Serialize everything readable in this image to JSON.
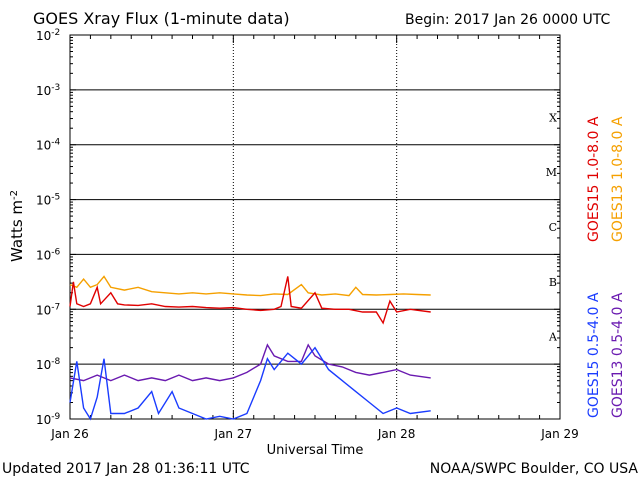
{
  "header": {
    "title": "GOES Xray Flux (1-minute data)",
    "begin": "Begin:  2017 Jan 26 0000 UTC"
  },
  "footer": {
    "updated": "Updated 2017 Jan 28 01:36:11 UTC",
    "credit": "NOAA/SWPC Boulder, CO USA"
  },
  "colors": {
    "goes15_long": "#e00000",
    "goes13_long": "#f5a000",
    "goes15_short": "#1a3cff",
    "goes13_short": "#6a1ab0"
  },
  "chart_data": {
    "type": "line",
    "title": "GOES Xray Flux (1-minute data)",
    "xlabel": "Universal Time",
    "ylabel": "Watts m-2",
    "yscale": "log",
    "ylim": [
      1e-09,
      0.01
    ],
    "xlim_hours": [
      0,
      72
    ],
    "x_ticks": [
      {
        "h": 0,
        "label": "Jan 26"
      },
      {
        "h": 24,
        "label": "Jan 27"
      },
      {
        "h": 48,
        "label": "Jan 28"
      },
      {
        "h": 72,
        "label": "Jan 29"
      }
    ],
    "y_ticks": [
      {
        "exp": -2,
        "label": "10"
      },
      {
        "exp": -3,
        "label": "10"
      },
      {
        "exp": -4,
        "label": "10"
      },
      {
        "exp": -5,
        "label": "10"
      },
      {
        "exp": -6,
        "label": "10"
      },
      {
        "exp": -7,
        "label": "10"
      },
      {
        "exp": -8,
        "label": "10"
      },
      {
        "exp": -9,
        "label": "10"
      }
    ],
    "flare_classes": [
      {
        "label": "X",
        "exp": -3.5
      },
      {
        "label": "M",
        "exp": -4.5
      },
      {
        "label": "C",
        "exp": -5.5
      },
      {
        "label": "B",
        "exp": -6.5
      },
      {
        "label": "A",
        "exp": -7.5
      }
    ],
    "legend": [
      {
        "label": "GOES15 1.0-8.0 A",
        "color": "#e00000"
      },
      {
        "label": "GOES13 1.0-8.0 A",
        "color": "#f5a000"
      },
      {
        "label": "GOES15 0.5-4.0 A",
        "color": "#1a3cff"
      },
      {
        "label": "GOES13 0.5-4.0 A",
        "color": "#6a1ab0"
      }
    ],
    "series": [
      {
        "name": "GOES13 1.0-8.0 A",
        "color": "#f5a000",
        "points": [
          [
            0,
            -6.55
          ],
          [
            1,
            -6.6
          ],
          [
            2,
            -6.45
          ],
          [
            3,
            -6.6
          ],
          [
            4,
            -6.55
          ],
          [
            5,
            -6.4
          ],
          [
            6,
            -6.6
          ],
          [
            8,
            -6.65
          ],
          [
            10,
            -6.6
          ],
          [
            12,
            -6.68
          ],
          [
            14,
            -6.7
          ],
          [
            16,
            -6.72
          ],
          [
            18,
            -6.7
          ],
          [
            20,
            -6.72
          ],
          [
            22,
            -6.7
          ],
          [
            24,
            -6.72
          ],
          [
            26,
            -6.74
          ],
          [
            28,
            -6.75
          ],
          [
            30,
            -6.72
          ],
          [
            32,
            -6.73
          ],
          [
            34,
            -6.55
          ],
          [
            35,
            -6.7
          ],
          [
            37,
            -6.74
          ],
          [
            39,
            -6.72
          ],
          [
            41,
            -6.75
          ],
          [
            42,
            -6.6
          ],
          [
            43,
            -6.73
          ],
          [
            45,
            -6.74
          ],
          [
            47,
            -6.73
          ],
          [
            49,
            -6.72
          ],
          [
            51,
            -6.73
          ],
          [
            53,
            -6.74
          ]
        ]
      },
      {
        "name": "GOES15 1.0-8.0 A",
        "color": "#e00000",
        "points": [
          [
            0,
            -6.95
          ],
          [
            0.5,
            -6.5
          ],
          [
            1,
            -6.9
          ],
          [
            2,
            -6.95
          ],
          [
            3,
            -6.9
          ],
          [
            4,
            -6.6
          ],
          [
            4.5,
            -6.9
          ],
          [
            6,
            -6.7
          ],
          [
            7,
            -6.9
          ],
          [
            8,
            -6.92
          ],
          [
            10,
            -6.93
          ],
          [
            12,
            -6.9
          ],
          [
            14,
            -6.95
          ],
          [
            16,
            -6.96
          ],
          [
            18,
            -6.95
          ],
          [
            20,
            -6.97
          ],
          [
            22,
            -6.98
          ],
          [
            24,
            -6.97
          ],
          [
            26,
            -7.0
          ],
          [
            28,
            -7.02
          ],
          [
            30,
            -7.0
          ],
          [
            31,
            -6.95
          ],
          [
            32,
            -6.4
          ],
          [
            32.5,
            -6.95
          ],
          [
            34,
            -6.98
          ],
          [
            36,
            -6.7
          ],
          [
            37,
            -6.98
          ],
          [
            39,
            -7.0
          ],
          [
            41,
            -7.0
          ],
          [
            43,
            -7.05
          ],
          [
            45,
            -7.05
          ],
          [
            46,
            -7.25
          ],
          [
            47,
            -6.85
          ],
          [
            48,
            -7.05
          ],
          [
            50,
            -7.0
          ],
          [
            53,
            -7.05
          ]
        ]
      },
      {
        "name": "GOES13 0.5-4.0 A",
        "color": "#6a1ab0",
        "points": [
          [
            0,
            -8.25
          ],
          [
            2,
            -8.3
          ],
          [
            4,
            -8.2
          ],
          [
            6,
            -8.3
          ],
          [
            8,
            -8.2
          ],
          [
            10,
            -8.3
          ],
          [
            12,
            -8.25
          ],
          [
            14,
            -8.3
          ],
          [
            16,
            -8.2
          ],
          [
            18,
            -8.3
          ],
          [
            20,
            -8.25
          ],
          [
            22,
            -8.3
          ],
          [
            24,
            -8.25
          ],
          [
            26,
            -8.15
          ],
          [
            28,
            -8.0
          ],
          [
            29,
            -7.65
          ],
          [
            30,
            -7.85
          ],
          [
            32,
            -7.95
          ],
          [
            34,
            -7.95
          ],
          [
            35,
            -7.65
          ],
          [
            36,
            -7.85
          ],
          [
            38,
            -8.0
          ],
          [
            40,
            -8.05
          ],
          [
            42,
            -8.15
          ],
          [
            44,
            -8.2
          ],
          [
            46,
            -8.15
          ],
          [
            48,
            -8.1
          ],
          [
            50,
            -8.2
          ],
          [
            53,
            -8.25
          ]
        ]
      },
      {
        "name": "GOES15 0.5-4.0 A",
        "color": "#1a3cff",
        "points": [
          [
            0,
            -8.7
          ],
          [
            1,
            -7.95
          ],
          [
            2,
            -8.8
          ],
          [
            3,
            -9.0
          ],
          [
            4,
            -8.6
          ],
          [
            5,
            -7.9
          ],
          [
            6,
            -8.9
          ],
          [
            8,
            -8.9
          ],
          [
            10,
            -8.8
          ],
          [
            12,
            -8.5
          ],
          [
            13,
            -8.9
          ],
          [
            15,
            -8.5
          ],
          [
            16,
            -8.8
          ],
          [
            18,
            -8.9
          ],
          [
            20,
            -9.0
          ],
          [
            22,
            -8.95
          ],
          [
            24,
            -9.0
          ],
          [
            26,
            -8.9
          ],
          [
            28,
            -8.3
          ],
          [
            29,
            -7.9
          ],
          [
            30,
            -8.1
          ],
          [
            32,
            -7.8
          ],
          [
            34,
            -8.0
          ],
          [
            36,
            -7.7
          ],
          [
            38,
            -8.1
          ],
          [
            40,
            -8.3
          ],
          [
            42,
            -8.5
          ],
          [
            44,
            -8.7
          ],
          [
            46,
            -8.9
          ],
          [
            48,
            -8.8
          ],
          [
            50,
            -8.9
          ],
          [
            53,
            -8.85
          ]
        ]
      }
    ]
  }
}
